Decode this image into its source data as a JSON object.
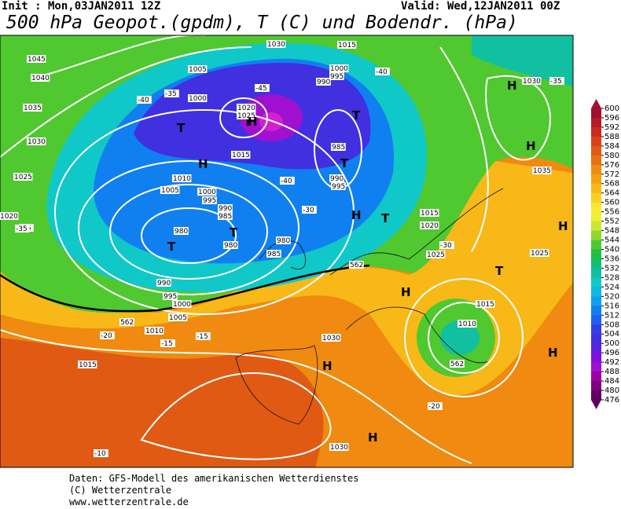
{
  "header": {
    "init": "Init : Mon,03JAN2011 12Z",
    "valid": "Valid: Wed,12JAN2011 00Z",
    "title": "500 hPa Geopot.(gpdm), T (C) und Bodendr. (hPa)"
  },
  "map_labels": [
    "1045",
    "1040",
    "1035",
    "1030",
    "1025",
    "1020",
    "-35",
    "-40",
    "-35",
    "1005",
    "1000",
    "T",
    "T",
    "1020",
    "1025",
    "H",
    "-45",
    "1015",
    "1030",
    "1015",
    "1000",
    "995",
    "990",
    "T",
    "985",
    "T",
    "990",
    "995",
    "1010",
    "1005",
    "H",
    "-40",
    "1000",
    "995",
    "990",
    "985",
    "980",
    "980",
    "T",
    "T",
    "985",
    "980",
    "-35",
    "-30",
    "H",
    "T",
    "-40",
    "H",
    "1030",
    "-35",
    "H",
    "1035",
    "1015",
    "1020",
    "1025",
    "-30",
    "T",
    "H",
    "1025",
    "H",
    "990",
    "995",
    "1000",
    "1005",
    "1010",
    "-20",
    "-15",
    "-15",
    "1015",
    "1030",
    "H",
    "1015",
    "1010",
    "H",
    "1030",
    "H",
    "-20",
    "-10",
    "562",
    "562",
    "562"
  ],
  "colorbar": {
    "labels": [
      600,
      596,
      592,
      588,
      584,
      580,
      576,
      572,
      568,
      564,
      560,
      556,
      552,
      548,
      544,
      540,
      536,
      532,
      528,
      524,
      520,
      516,
      512,
      508,
      504,
      500,
      496,
      492,
      488,
      484,
      480,
      476
    ],
    "colors": [
      "#a01030",
      "#b81a28",
      "#cc2a1e",
      "#d8401a",
      "#e05a14",
      "#e87010",
      "#f08a10",
      "#f5a010",
      "#f8b818",
      "#fcd020",
      "#fde830",
      "#f0f030",
      "#c8e830",
      "#90d830",
      "#50c830",
      "#20c040",
      "#10c070",
      "#10c0a0",
      "#10c8c8",
      "#10b8e0",
      "#10a0f0",
      "#1080f0",
      "#2060f0",
      "#3040e8",
      "#4030e0",
      "#6020e0",
      "#8010e0",
      "#a010d0",
      "#a000a0",
      "#800080",
      "#600060"
    ]
  },
  "footer": [
    "Daten: GFS-Modell des amerikanischen Wetterdienstes",
    "(C) Wetterzentrale",
    "www.wetterzentrale.de"
  ]
}
